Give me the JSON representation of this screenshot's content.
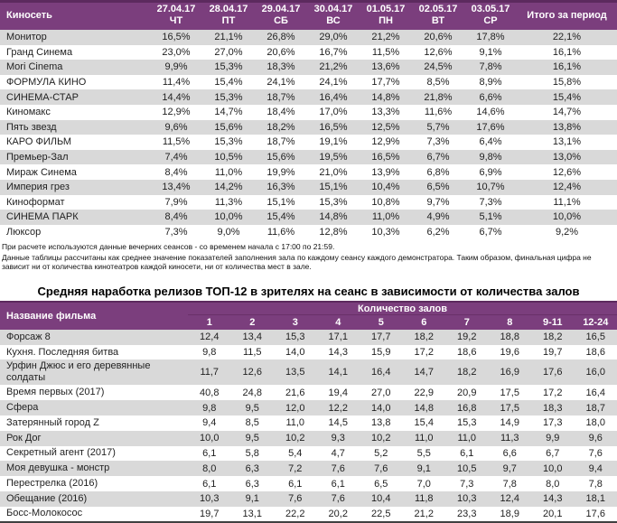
{
  "colors": {
    "header_bg": "#7B3E7D",
    "header_accent_line": "#5C2A5E",
    "row_stripe": "#D9D9D9",
    "header_text": "#FFFFFF",
    "body_text": "#1F1F1F",
    "table_bottom_border": "#404040"
  },
  "table1": {
    "name_header": "Киносеть",
    "total_header": "Итого за период",
    "columns": [
      {
        "date": "27.04.17",
        "day": "ЧТ"
      },
      {
        "date": "28.04.17",
        "day": "ПТ"
      },
      {
        "date": "29.04.17",
        "day": "СБ"
      },
      {
        "date": "30.04.17",
        "day": "ВС"
      },
      {
        "date": "01.05.17",
        "day": "ПН"
      },
      {
        "date": "02.05.17",
        "day": "ВТ"
      },
      {
        "date": "03.05.17",
        "day": "СР"
      }
    ],
    "rows": [
      {
        "name": "Монитор",
        "values": [
          "16,5%",
          "21,1%",
          "26,8%",
          "29,0%",
          "21,2%",
          "20,6%",
          "17,8%"
        ],
        "total": "22,1%"
      },
      {
        "name": "Гранд Синема",
        "values": [
          "23,0%",
          "27,0%",
          "20,6%",
          "16,7%",
          "11,5%",
          "12,6%",
          "9,1%"
        ],
        "total": "16,1%"
      },
      {
        "name": "Mori Cinema",
        "values": [
          "9,9%",
          "15,3%",
          "18,3%",
          "21,2%",
          "13,6%",
          "24,5%",
          "7,8%"
        ],
        "total": "16,1%"
      },
      {
        "name": "ФОРМУЛА КИНО",
        "values": [
          "11,4%",
          "15,4%",
          "24,1%",
          "24,1%",
          "17,7%",
          "8,5%",
          "8,9%"
        ],
        "total": "15,8%"
      },
      {
        "name": "СИНЕМА-СТАР",
        "values": [
          "14,4%",
          "15,3%",
          "18,7%",
          "16,4%",
          "14,8%",
          "21,8%",
          "6,6%"
        ],
        "total": "15,4%"
      },
      {
        "name": "Киномакс",
        "values": [
          "12,9%",
          "14,7%",
          "18,4%",
          "17,0%",
          "13,3%",
          "11,6%",
          "14,6%"
        ],
        "total": "14,7%"
      },
      {
        "name": "Пять звезд",
        "values": [
          "9,6%",
          "15,6%",
          "18,2%",
          "16,5%",
          "12,5%",
          "5,7%",
          "17,6%"
        ],
        "total": "13,8%"
      },
      {
        "name": "КАРО ФИЛЬМ",
        "values": [
          "11,5%",
          "15,3%",
          "18,7%",
          "19,1%",
          "12,9%",
          "7,3%",
          "6,4%"
        ],
        "total": "13,1%"
      },
      {
        "name": "Премьер-Зал",
        "values": [
          "7,4%",
          "10,5%",
          "15,6%",
          "19,5%",
          "16,5%",
          "6,7%",
          "9,8%"
        ],
        "total": "13,0%"
      },
      {
        "name": "Мираж Синема",
        "values": [
          "8,4%",
          "11,0%",
          "19,9%",
          "21,0%",
          "13,9%",
          "6,8%",
          "6,9%"
        ],
        "total": "12,6%"
      },
      {
        "name": "Империя грез",
        "values": [
          "13,4%",
          "14,2%",
          "16,3%",
          "15,1%",
          "10,4%",
          "6,5%",
          "10,7%"
        ],
        "total": "12,4%"
      },
      {
        "name": "Киноформат",
        "values": [
          "7,9%",
          "11,3%",
          "15,1%",
          "15,3%",
          "10,8%",
          "9,7%",
          "7,3%"
        ],
        "total": "11,1%"
      },
      {
        "name": "СИНЕМА ПАРК",
        "values": [
          "8,4%",
          "10,0%",
          "15,4%",
          "14,8%",
          "11,0%",
          "4,9%",
          "5,1%"
        ],
        "total": "10,0%"
      },
      {
        "name": "Люксор",
        "values": [
          "7,3%",
          "9,0%",
          "11,6%",
          "12,8%",
          "10,3%",
          "6,2%",
          "6,7%"
        ],
        "total": "9,2%"
      }
    ]
  },
  "notes": [
    "При расчете используются данные вечерних сеансов - со временем начала с 17:00 по 21:59.",
    "Данные таблицы рассчитаны как среднее значение показателей заполнения зала по каждому сеансу каждого демонстратора. Таким образом, финальная цифра не зависит ни от количества кинотеатров каждой киносети, ни от количества мест в зале."
  ],
  "table2": {
    "title": "Средняя наработка релизов ТОП-12 в зрителях на сеанс в зависимости от количества залов",
    "name_header": "Название фильма",
    "group_header": "Количество залов",
    "columns": [
      "1",
      "2",
      "3",
      "4",
      "5",
      "6",
      "7",
      "8",
      "9-11",
      "12-24"
    ],
    "rows": [
      {
        "name": "Форсаж 8",
        "values": [
          "12,4",
          "13,4",
          "15,3",
          "17,1",
          "17,7",
          "18,2",
          "19,2",
          "18,8",
          "18,2",
          "16,5"
        ]
      },
      {
        "name": "Кухня. Последняя битва",
        "values": [
          "9,8",
          "11,5",
          "14,0",
          "14,3",
          "15,9",
          "17,2",
          "18,6",
          "19,6",
          "19,7",
          "18,6"
        ]
      },
      {
        "name": "Урфин Джюс и его деревянные солдаты",
        "values": [
          "11,7",
          "12,6",
          "13,5",
          "14,1",
          "16,4",
          "14,7",
          "18,2",
          "16,9",
          "17,6",
          "16,0"
        ]
      },
      {
        "name": "Время первых (2017)",
        "values": [
          "40,8",
          "24,8",
          "21,6",
          "19,4",
          "27,0",
          "22,9",
          "20,9",
          "17,5",
          "17,2",
          "16,4"
        ]
      },
      {
        "name": "Сфера",
        "values": [
          "9,8",
          "9,5",
          "12,0",
          "12,2",
          "14,0",
          "14,8",
          "16,8",
          "17,5",
          "18,3",
          "18,7"
        ]
      },
      {
        "name": "Затерянный город Z",
        "values": [
          "9,4",
          "8,5",
          "11,0",
          "14,5",
          "13,8",
          "15,4",
          "15,3",
          "14,9",
          "17,3",
          "18,0"
        ]
      },
      {
        "name": "Рок Дог",
        "values": [
          "10,0",
          "9,5",
          "10,2",
          "9,3",
          "10,2",
          "11,0",
          "11,0",
          "11,3",
          "9,9",
          "9,6"
        ]
      },
      {
        "name": "Секретный агент (2017)",
        "values": [
          "6,1",
          "5,8",
          "5,4",
          "4,7",
          "5,2",
          "5,5",
          "6,1",
          "6,6",
          "6,7",
          "7,6"
        ]
      },
      {
        "name": "Моя девушка - монстр",
        "values": [
          "8,0",
          "6,3",
          "7,2",
          "7,6",
          "7,6",
          "9,1",
          "10,5",
          "9,7",
          "10,0",
          "9,4"
        ]
      },
      {
        "name": "Перестрелка (2016)",
        "values": [
          "6,1",
          "6,3",
          "6,1",
          "6,1",
          "6,5",
          "7,0",
          "7,3",
          "7,8",
          "8,0",
          "7,8"
        ]
      },
      {
        "name": "Обещание (2016)",
        "values": [
          "10,3",
          "9,1",
          "7,6",
          "7,6",
          "10,4",
          "11,8",
          "10,3",
          "12,4",
          "14,3",
          "18,1"
        ]
      },
      {
        "name": "Босс-Молокосос",
        "values": [
          "19,7",
          "13,1",
          "22,2",
          "20,2",
          "22,5",
          "21,2",
          "23,3",
          "18,9",
          "20,1",
          "17,6"
        ]
      }
    ]
  }
}
